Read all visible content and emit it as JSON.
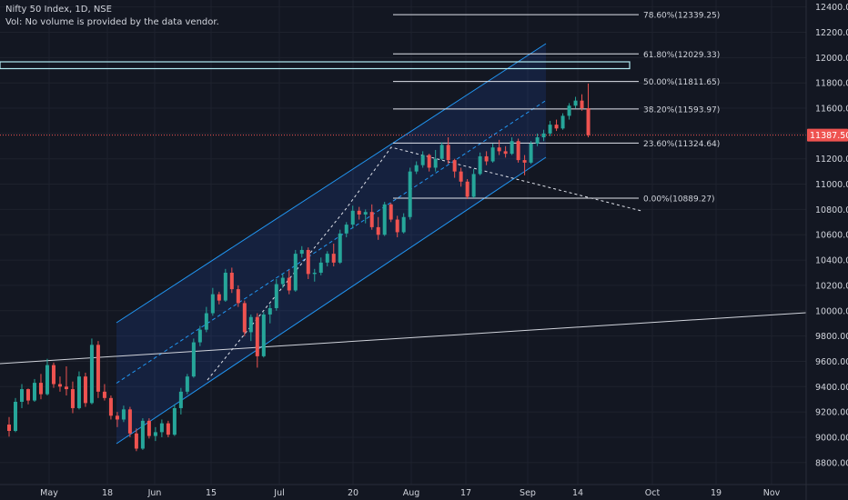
{
  "header": {
    "symbol_line": "Nifty 50 Index, 1D, NSE",
    "volume_note": "Vol: No volume is provided by the data vendor."
  },
  "colors": {
    "background": "#131722",
    "up": "#26a69a",
    "down": "#ef5350",
    "channel": "#2962ff",
    "grid": "#1e222d",
    "text": "#d1d4dc",
    "price_label_bg": "#ef5350"
  },
  "chart_data": {
    "type": "candlestick",
    "title": "Nifty 50 Index, 1D, NSE",
    "x_ticks": [
      "May",
      "18",
      "Jun",
      "15",
      "Jul",
      "20",
      "Aug",
      "17",
      "Sep",
      "14",
      "Oct",
      "19",
      "Nov"
    ],
    "y_ticks": [
      12400,
      12200,
      12000,
      11800,
      11600,
      11400,
      11200,
      11000,
      10800,
      10600,
      10400,
      10200,
      10000,
      9800,
      9600,
      9400,
      9200,
      9000,
      8800
    ],
    "ylim": [
      8720,
      12650
    ],
    "last_price": {
      "value": 11387.5,
      "label": "11387.50"
    },
    "fibonacci": [
      {
        "label": "78.60%(12339.25)",
        "value": 12339.25
      },
      {
        "label": "61.80%(12029.33)",
        "value": 12029.33
      },
      {
        "label": "50.00%(11811.65)",
        "value": 11811.65
      },
      {
        "label": "38.20%(11593.97)",
        "value": 11593.97
      },
      {
        "label": "23.60%(11324.64)",
        "value": 11324.64
      },
      {
        "label": "0.00%(10889.27)",
        "value": 10889.27
      }
    ],
    "candles": [
      [
        9100,
        9160,
        9005,
        9050
      ],
      [
        9050,
        9310,
        9040,
        9280
      ],
      [
        9280,
        9420,
        9230,
        9380
      ],
      [
        9380,
        9385,
        9260,
        9290
      ],
      [
        9290,
        9460,
        9280,
        9430
      ],
      [
        9430,
        9500,
        9300,
        9340
      ],
      [
        9340,
        9620,
        9330,
        9570
      ],
      [
        9570,
        9590,
        9390,
        9420
      ],
      [
        9420,
        9480,
        9360,
        9400
      ],
      [
        9400,
        9560,
        9330,
        9380
      ],
      [
        9380,
        9440,
        9190,
        9230
      ],
      [
        9230,
        9520,
        9220,
        9480
      ],
      [
        9480,
        9510,
        9240,
        9270
      ],
      [
        9270,
        9780,
        9260,
        9730
      ],
      [
        9730,
        9760,
        9310,
        9360
      ],
      [
        9360,
        9420,
        9290,
        9310
      ],
      [
        9310,
        9330,
        9140,
        9170
      ],
      [
        9170,
        9200,
        9080,
        9140
      ],
      [
        9140,
        9250,
        9120,
        9220
      ],
      [
        9220,
        9240,
        9000,
        9030
      ],
      [
        9030,
        9070,
        8890,
        8910
      ],
      [
        8910,
        9150,
        8900,
        9130
      ],
      [
        9130,
        9150,
        8990,
        9010
      ],
      [
        9010,
        9080,
        8970,
        9040
      ],
      [
        9040,
        9140,
        9000,
        9110
      ],
      [
        9110,
        9130,
        9000,
        9020
      ],
      [
        9020,
        9260,
        9010,
        9230
      ],
      [
        9230,
        9390,
        9180,
        9360
      ],
      [
        9360,
        9500,
        9340,
        9480
      ],
      [
        9480,
        9780,
        9470,
        9750
      ],
      [
        9750,
        9880,
        9720,
        9850
      ],
      [
        9850,
        10030,
        9830,
        9980
      ],
      [
        9980,
        10180,
        9960,
        10130
      ],
      [
        10130,
        10150,
        10050,
        10080
      ],
      [
        10080,
        10330,
        10070,
        10300
      ],
      [
        10300,
        10340,
        10140,
        10170
      ],
      [
        10170,
        10200,
        10030,
        10060
      ],
      [
        10060,
        10080,
        9800,
        9830
      ],
      [
        9830,
        9970,
        9760,
        9950
      ],
      [
        9950,
        9980,
        9550,
        9640
      ],
      [
        9640,
        9990,
        9630,
        9970
      ],
      [
        9970,
        10050,
        9900,
        10020
      ],
      [
        10020,
        10250,
        10000,
        10210
      ],
      [
        10210,
        10290,
        10180,
        10260
      ],
      [
        10260,
        10320,
        10130,
        10160
      ],
      [
        10160,
        10480,
        10150,
        10450
      ],
      [
        10450,
        10510,
        10420,
        10480
      ],
      [
        10480,
        10500,
        10250,
        10290
      ],
      [
        10290,
        10330,
        10230,
        10300
      ],
      [
        10300,
        10420,
        10280,
        10380
      ],
      [
        10380,
        10470,
        10350,
        10450
      ],
      [
        10450,
        10530,
        10350,
        10380
      ],
      [
        10380,
        10640,
        10370,
        10610
      ],
      [
        10610,
        10700,
        10580,
        10680
      ],
      [
        10680,
        10830,
        10650,
        10790
      ],
      [
        10790,
        10820,
        10720,
        10760
      ],
      [
        10760,
        10800,
        10690,
        10780
      ],
      [
        10780,
        10840,
        10640,
        10660
      ],
      [
        10660,
        10740,
        10560,
        10600
      ],
      [
        10600,
        10860,
        10590,
        10840
      ],
      [
        10840,
        10850,
        10700,
        10720
      ],
      [
        10720,
        10750,
        10580,
        10620
      ],
      [
        10620,
        10770,
        10610,
        10740
      ],
      [
        10740,
        11130,
        10720,
        11100
      ],
      [
        11100,
        11180,
        11080,
        11150
      ],
      [
        11150,
        11260,
        11130,
        11230
      ],
      [
        11230,
        11240,
        11100,
        11130
      ],
      [
        11130,
        11270,
        11100,
        11200
      ],
      [
        11200,
        11330,
        11190,
        11310
      ],
      [
        11310,
        11370,
        11160,
        11190
      ],
      [
        11190,
        11200,
        11050,
        11100
      ],
      [
        11100,
        11130,
        10980,
        11020
      ],
      [
        11020,
        11040,
        10882,
        10900
      ],
      [
        10900,
        11120,
        10890,
        11080
      ],
      [
        11080,
        11250,
        11070,
        11220
      ],
      [
        11220,
        11260,
        11150,
        11180
      ],
      [
        11180,
        11320,
        11170,
        11290
      ],
      [
        11290,
        11350,
        11230,
        11260
      ],
      [
        11260,
        11300,
        11210,
        11240
      ],
      [
        11240,
        11370,
        11230,
        11340
      ],
      [
        11340,
        11360,
        11170,
        11190
      ],
      [
        11190,
        11230,
        11070,
        11170
      ],
      [
        11170,
        11340,
        11160,
        11320
      ],
      [
        11320,
        11400,
        11300,
        11370
      ],
      [
        11370,
        11430,
        11340,
        11400
      ],
      [
        11400,
        11500,
        11380,
        11470
      ],
      [
        11470,
        11510,
        11420,
        11440
      ],
      [
        11440,
        11560,
        11430,
        11540
      ],
      [
        11540,
        11640,
        11510,
        11620
      ],
      [
        11620,
        11690,
        11600,
        11660
      ],
      [
        11660,
        11710,
        11580,
        11600
      ],
      [
        11600,
        11795,
        11370,
        11387.5
      ]
    ]
  }
}
